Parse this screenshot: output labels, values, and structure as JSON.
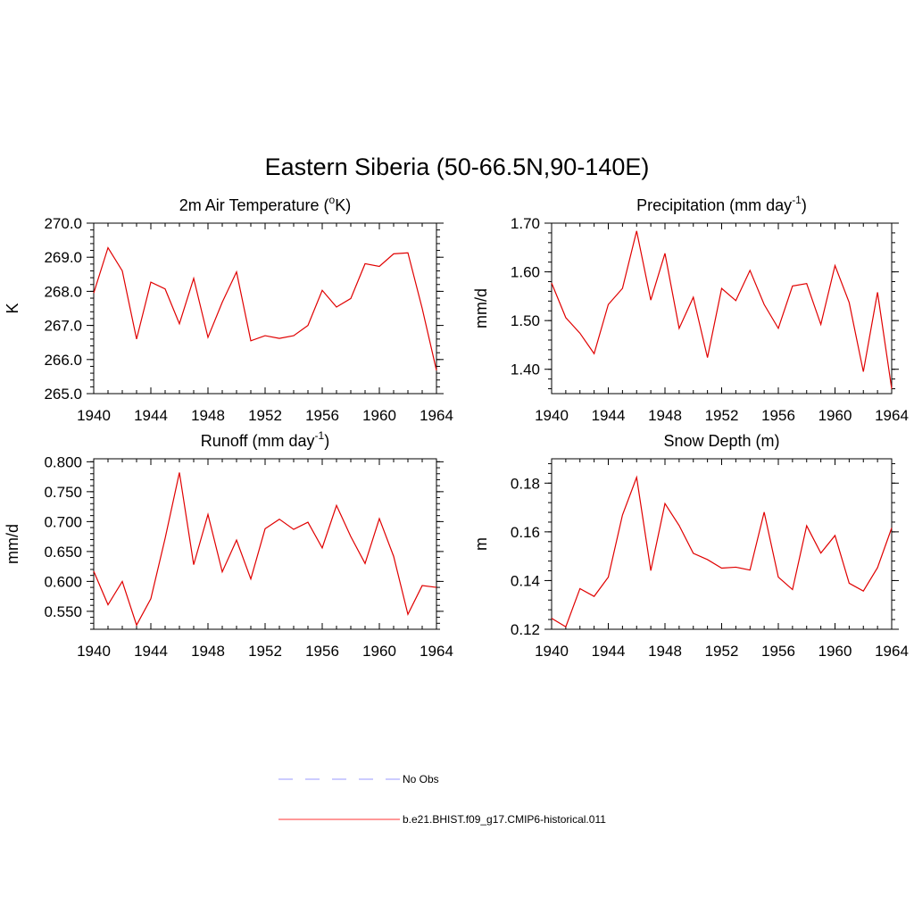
{
  "title": "Eastern Siberia (50-66.5N,90-140E)",
  "legend": {
    "items": [
      {
        "label": "No Obs",
        "color": "#9999ff",
        "dashed": true
      },
      {
        "label": "b.e21.BHIST.f09_g17.CMIP6-historical.011",
        "color": "#ff3333",
        "dashed": false
      }
    ]
  },
  "series_color": "#e00000",
  "chart_data": [
    {
      "type": "line",
      "title_main": "2m Air Temperature (",
      "title_sup": "o",
      "title_tail": "K)",
      "ylabel": "K",
      "xlim": [
        1940,
        1964
      ],
      "ylim": [
        265.0,
        270.0
      ],
      "xticks": [
        1940,
        1944,
        1948,
        1952,
        1956,
        1960,
        1964
      ],
      "yticks": [
        265.0,
        266.0,
        267.0,
        268.0,
        269.0,
        270.0
      ],
      "ytick_labels": [
        "265.0",
        "266.0",
        "267.0",
        "268.0",
        "269.0",
        "270.0"
      ],
      "yminor_step": 0.2,
      "x": [
        1940,
        1941,
        1942,
        1943,
        1944,
        1945,
        1946,
        1947,
        1948,
        1949,
        1950,
        1951,
        1952,
        1953,
        1954,
        1955,
        1956,
        1957,
        1958,
        1959,
        1960,
        1961,
        1962,
        1963,
        1964
      ],
      "values": [
        267.95,
        269.28,
        268.6,
        266.6,
        268.27,
        268.07,
        267.05,
        268.38,
        266.65,
        267.68,
        268.57,
        266.55,
        266.7,
        266.62,
        266.7,
        267.0,
        268.03,
        267.54,
        267.79,
        268.81,
        268.73,
        269.1,
        269.13,
        267.5,
        265.68
      ]
    },
    {
      "type": "line",
      "title_main": "Precipitation (mm day",
      "title_sup": "-1",
      "title_tail": ")",
      "ylabel": "mm/d",
      "xlim": [
        1940,
        1964
      ],
      "ylim": [
        1.35,
        1.7
      ],
      "xticks": [
        1940,
        1944,
        1948,
        1952,
        1956,
        1960,
        1964
      ],
      "yticks": [
        1.4,
        1.5,
        1.6,
        1.7
      ],
      "ytick_labels": [
        "1.40",
        "1.50",
        "1.60",
        "1.70"
      ],
      "yminor_step": 0.02,
      "x": [
        1940,
        1941,
        1942,
        1943,
        1944,
        1945,
        1946,
        1947,
        1948,
        1949,
        1950,
        1951,
        1952,
        1953,
        1954,
        1955,
        1956,
        1957,
        1958,
        1959,
        1960,
        1961,
        1962,
        1963,
        1964
      ],
      "values": [
        1.577,
        1.506,
        1.474,
        1.432,
        1.533,
        1.566,
        1.684,
        1.542,
        1.638,
        1.484,
        1.548,
        1.424,
        1.566,
        1.541,
        1.603,
        1.533,
        1.484,
        1.571,
        1.576,
        1.492,
        1.613,
        1.537,
        1.395,
        1.558,
        1.36
      ]
    },
    {
      "type": "line",
      "title_main": "Runoff (mm day",
      "title_sup": "-1",
      "title_tail": ")",
      "ylabel": "mm/d",
      "xlim": [
        1940,
        1964
      ],
      "ylim": [
        0.52,
        0.805
      ],
      "xticks": [
        1940,
        1944,
        1948,
        1952,
        1956,
        1960,
        1964
      ],
      "yticks": [
        0.55,
        0.6,
        0.65,
        0.7,
        0.75,
        0.8
      ],
      "ytick_labels": [
        "0.550",
        "0.600",
        "0.650",
        "0.700",
        "0.750",
        "0.800"
      ],
      "yminor_step": 0.01,
      "x": [
        1940,
        1941,
        1942,
        1943,
        1944,
        1945,
        1946,
        1947,
        1948,
        1949,
        1950,
        1951,
        1952,
        1953,
        1954,
        1955,
        1956,
        1957,
        1958,
        1959,
        1960,
        1961,
        1962,
        1963,
        1964
      ],
      "values": [
        0.617,
        0.561,
        0.6,
        0.527,
        0.571,
        0.672,
        0.782,
        0.628,
        0.712,
        0.616,
        0.669,
        0.604,
        0.688,
        0.704,
        0.687,
        0.699,
        0.656,
        0.727,
        0.675,
        0.63,
        0.705,
        0.642,
        0.545,
        0.593,
        0.59
      ]
    },
    {
      "type": "line",
      "title_main": "Snow Depth (m)",
      "title_sup": "",
      "title_tail": "",
      "ylabel": "m",
      "xlim": [
        1940,
        1964
      ],
      "ylim": [
        0.12,
        0.19
      ],
      "xticks": [
        1940,
        1944,
        1948,
        1952,
        1956,
        1960,
        1964
      ],
      "yticks": [
        0.12,
        0.14,
        0.16,
        0.18
      ],
      "ytick_labels": [
        "0.12",
        "0.14",
        "0.16",
        "0.18"
      ],
      "yminor_step": 0.004,
      "x": [
        1940,
        1941,
        1942,
        1943,
        1944,
        1945,
        1946,
        1947,
        1948,
        1949,
        1950,
        1951,
        1952,
        1953,
        1954,
        1955,
        1956,
        1957,
        1958,
        1959,
        1960,
        1961,
        1962,
        1963,
        1964
      ],
      "values": [
        0.1245,
        0.121,
        0.1367,
        0.1335,
        0.1414,
        0.1669,
        0.1824,
        0.1441,
        0.1716,
        0.1626,
        0.1512,
        0.1486,
        0.1451,
        0.1455,
        0.1443,
        0.1681,
        0.1414,
        0.1363,
        0.1625,
        0.1513,
        0.1585,
        0.1389,
        0.1357,
        0.1453,
        0.1616
      ]
    }
  ]
}
